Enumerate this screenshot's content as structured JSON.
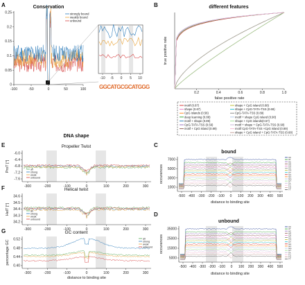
{
  "panels": {
    "A": {
      "letter": "A",
      "title": "Conservation",
      "y_ticks": [
        "0.25",
        "0.2",
        "0.15",
        "0.1",
        "0.05",
        "0"
      ],
      "x_ticks": [
        "-100",
        "-50",
        "0",
        "50",
        "100"
      ],
      "inset_x_ticks": [
        "-10",
        "-5",
        "0",
        "5",
        "10"
      ],
      "legend": [
        "strongly bound",
        "weakly bound",
        "unbound"
      ],
      "motif_text": "GGCATGCGCATGGG"
    },
    "B": {
      "letter": "B",
      "title": "different features",
      "ylabel": "true positive rate",
      "xlabel": "false positive rate",
      "x_ticks": [
        "0.2",
        "0.4",
        "0.6",
        "0.8",
        "1.0"
      ],
      "y_ticks": [
        "0",
        "0.2",
        "0.4",
        "0.6",
        "0.8",
        "1.0"
      ],
      "legend_left": [
        "motif (0.87)",
        "shape (0.67)",
        "CpG islands (0.56)",
        "deep learning (0.88)",
        "motif + shape (0.89)",
        "CpG-TATA-TSS (0.56)",
        "motif + CpG island (0.89)"
      ],
      "legend_right": [
        "shape + CpG island (0.68)",
        "shape + CpG-TATA-TSS (0.69)",
        "CpG-TATA-TSS (0.89)",
        "motif + shape CpG island (0.90)",
        "shape + CpG islands(0.57)",
        "motif + shape + CpG-TATA-TSS (0.90)",
        "motif CpG-TATA-TSS +CpG island (0.89)",
        "shape + CpG island + CpG-TATA-TSS (0.68)"
      ]
    },
    "dna_title": "DNA shape",
    "E": {
      "letter": "E",
      "title": "Propeller Twist",
      "ylabel": "ProT [°]",
      "y_ticks": [
        "-6.0",
        "-6.4",
        "-6.8",
        "-7.2",
        "-7.6"
      ],
      "x_ticks": [
        "-300",
        "-200",
        "-100",
        "0",
        "100",
        "200",
        "300"
      ],
      "legend": [
        "all",
        "strong",
        "weak",
        "unbound"
      ]
    },
    "F": {
      "letter": "F",
      "title": "Helical twist",
      "ylabel": "HelT [°]",
      "y_ticks": [
        "34.6",
        "34.5",
        "34.4",
        "34.3",
        "34.2"
      ],
      "x_ticks": [
        "-300",
        "-200",
        "-100",
        "0",
        "100",
        "200",
        "300"
      ],
      "legend": [
        "all",
        "strong",
        "weak",
        "unbound"
      ]
    },
    "G": {
      "letter": "G",
      "title": "GC content",
      "ylabel": "percentage GC",
      "xlabel": "distance to binding site",
      "y_ticks": [
        "0.52",
        "0.48",
        "0.44",
        "0.40"
      ],
      "x_ticks": [
        "-300",
        "-200",
        "-100",
        "0",
        "100",
        "200",
        "300"
      ],
      "legend": [
        "all",
        "strong",
        "weak",
        "unbound"
      ]
    },
    "C": {
      "letter": "C",
      "title": "bound",
      "ylabel": "occurences",
      "xlabel": "distance to binding site",
      "y_ticks": [
        "7000",
        "5000",
        "3000",
        "1000"
      ],
      "x_ticks": [
        "-500",
        "-400",
        "-300",
        "-200",
        "-100",
        "0",
        "100",
        "200",
        "300",
        "400",
        "500"
      ],
      "legend": [
        "AA",
        "AT",
        "AC",
        "AG",
        "CA",
        "CC",
        "CG",
        "CT",
        "GA",
        "GC",
        "GG",
        "GT",
        "TA",
        "TC",
        "TG",
        "TT"
      ]
    },
    "D": {
      "letter": "D",
      "title": "unbound",
      "ylabel": "occurences",
      "xlabel": "distance to binding site",
      "y_ticks": [
        "35000",
        "25000",
        "15000",
        "5000"
      ],
      "x_ticks": [
        "-500",
        "-400",
        "-300",
        "-200",
        "-100",
        "0",
        "100",
        "200",
        "300",
        "400",
        "500"
      ],
      "legend": [
        "AA",
        "AT",
        "AC",
        "AG",
        "CA",
        "CC",
        "CG",
        "CT",
        "GA",
        "GC",
        "GG",
        "GT",
        "TA",
        "TC",
        "TG",
        "TT"
      ]
    }
  },
  "colors": {
    "strong": "#2b7bba",
    "weak": "#e8a33a",
    "unbound": "#d64545",
    "all": "#55aa55",
    "roc": [
      "#d62728",
      "#e377c2",
      "#ff7f0e",
      "#2ca02c",
      "#1f77b4",
      "#9467bd",
      "#8c564b",
      "#bcbd22",
      "#17becf",
      "#7f7f7f",
      "#aec7e8",
      "#98df8a",
      "#c5b0d5",
      "#f7b6d2",
      "#c49c94"
    ]
  }
}
